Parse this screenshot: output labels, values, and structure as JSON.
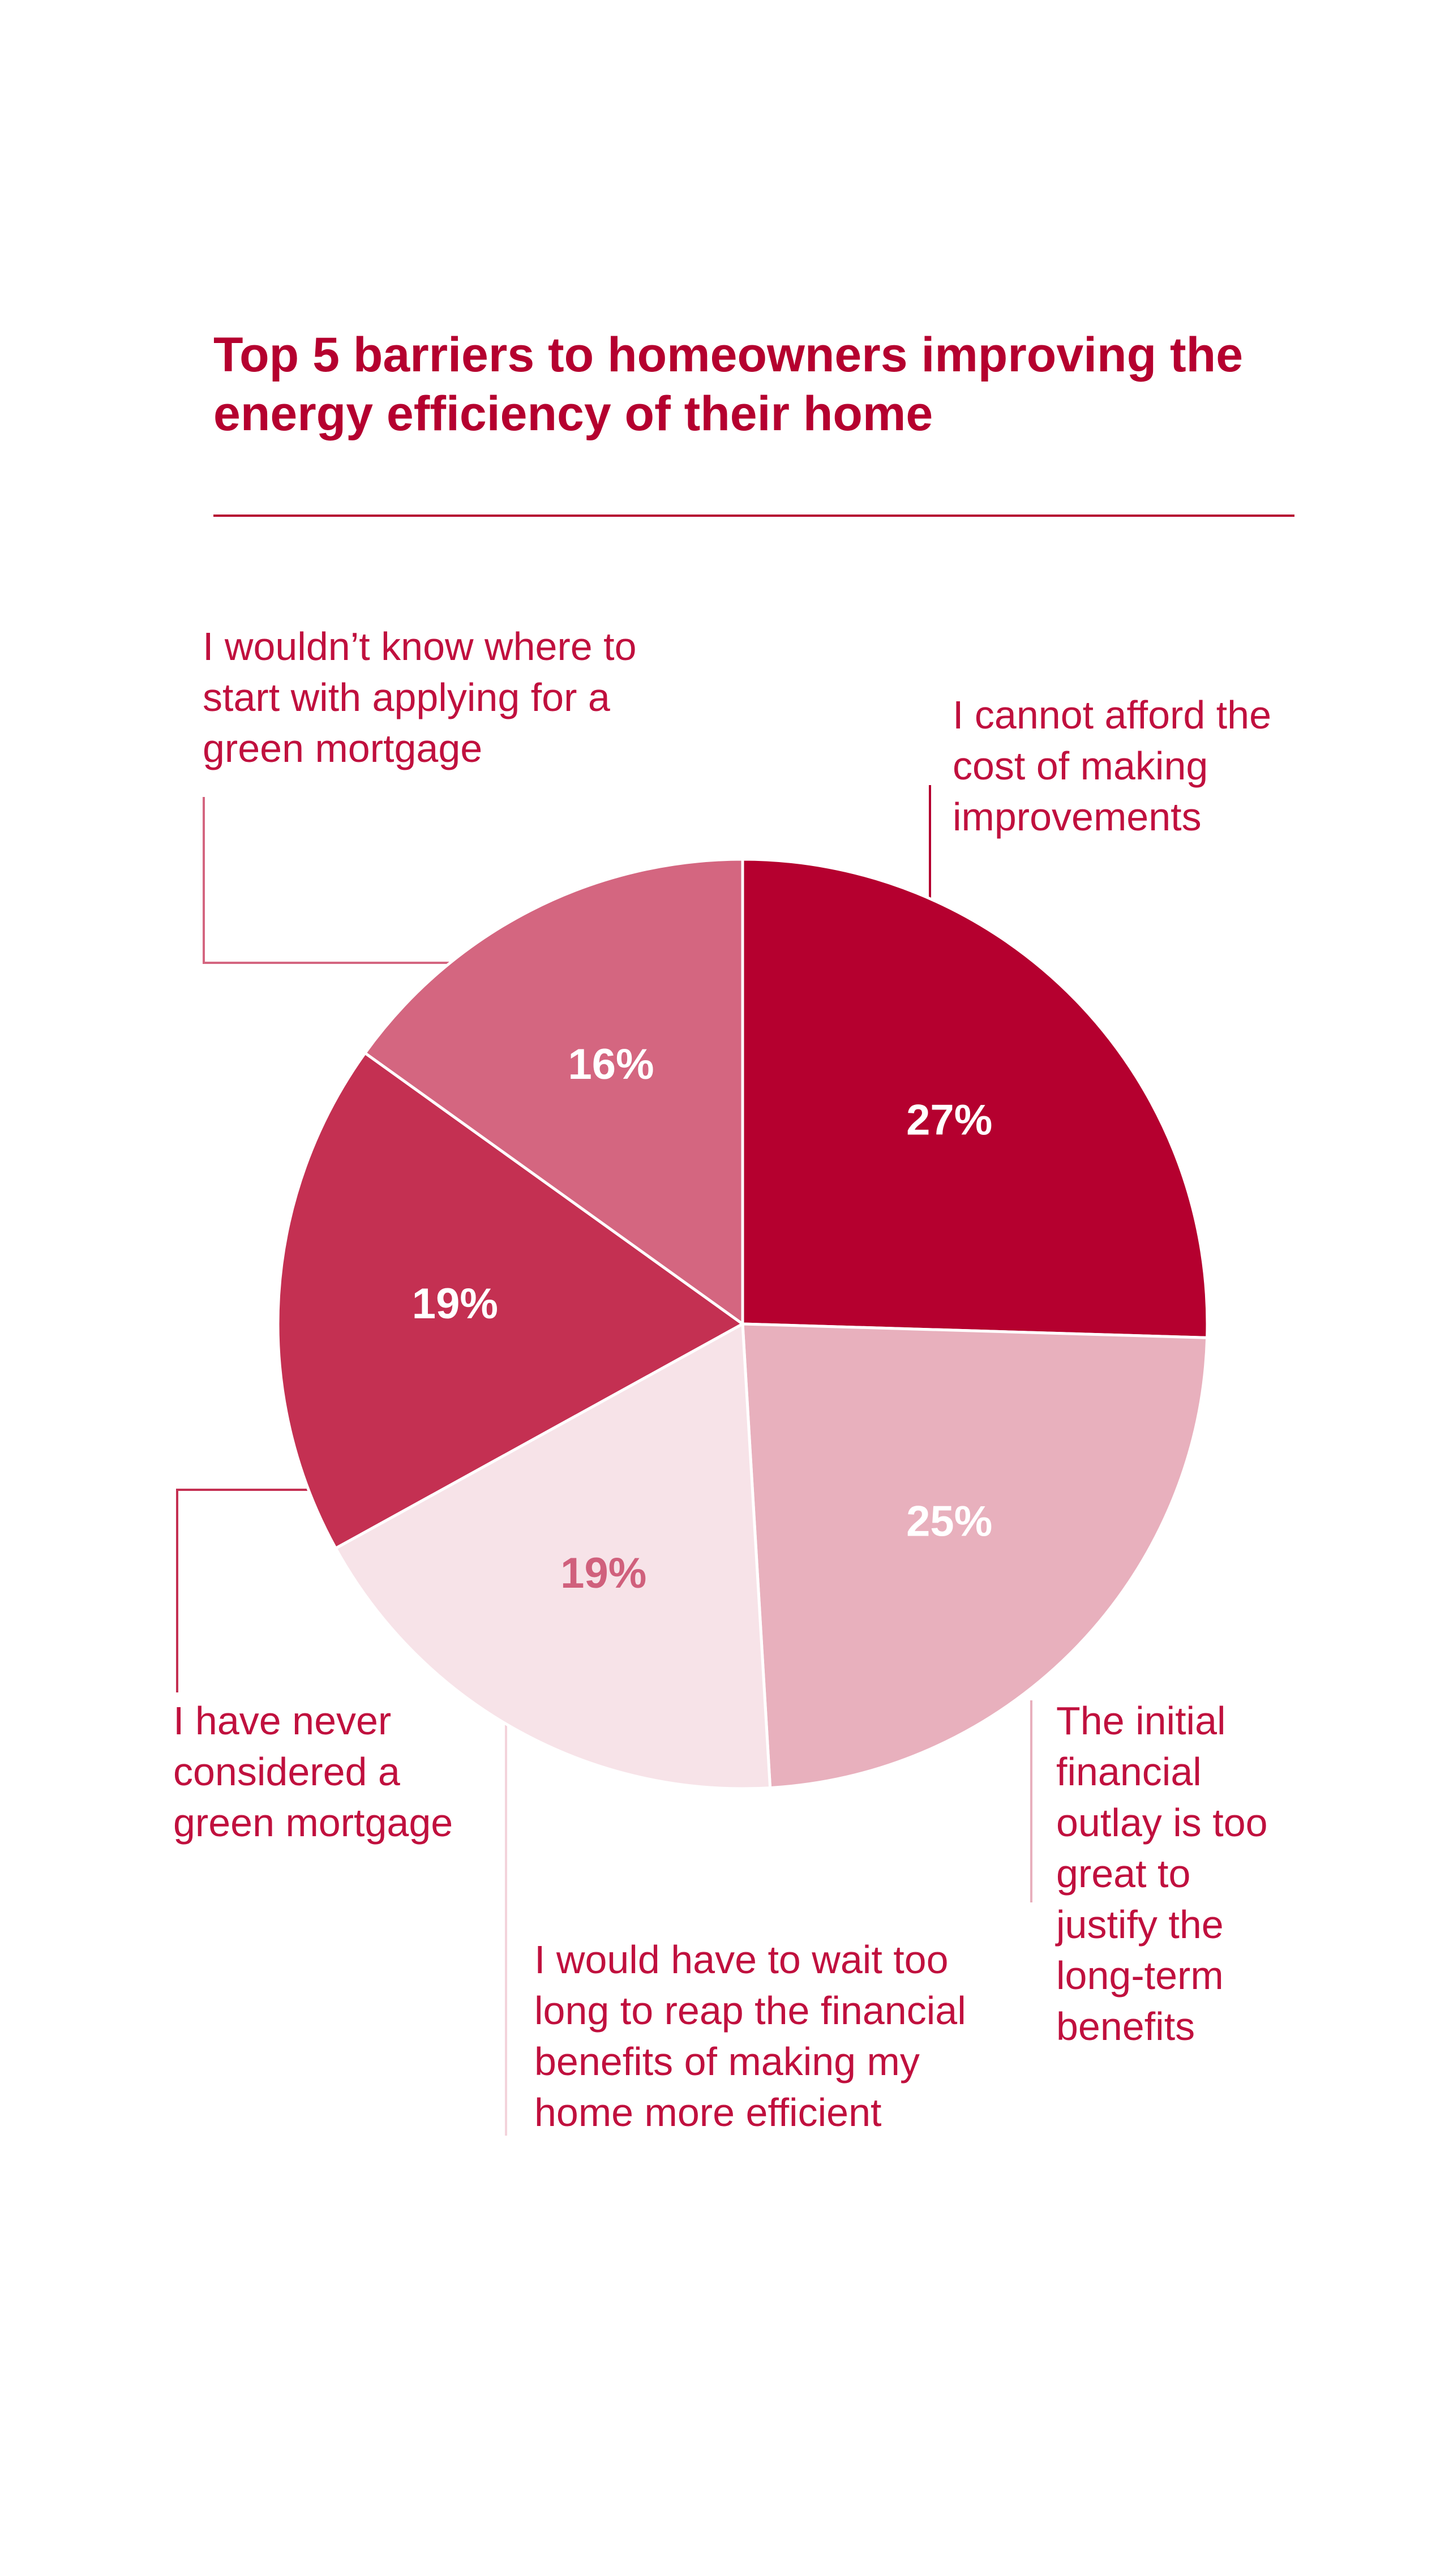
{
  "chart_data": {
    "type": "pie",
    "title": "Top 5 barriers to homeowners improving the energy efficiency of their home",
    "categories": [
      "I cannot afford the cost of making improvements",
      "The initial financial outlay is too great to justify the long-term benefits",
      "I would have to wait too long to reap the financial benefits of making my home more efficient",
      "I have never considered a green mortgage",
      "I wouldn’t know where to start with applying for a green mortgage"
    ],
    "values": [
      27,
      25,
      19,
      19,
      16
    ],
    "value_labels": [
      "27%",
      "25%",
      "19%",
      "19%",
      "16%"
    ],
    "colors": [
      "#b5002f",
      "#e8b0bd",
      "#f7e3e8",
      "#c43052",
      "#d46680"
    ],
    "label_colors": [
      "#ffffff",
      "#ffffff",
      "#d0607c",
      "#ffffff",
      "#ffffff"
    ]
  }
}
